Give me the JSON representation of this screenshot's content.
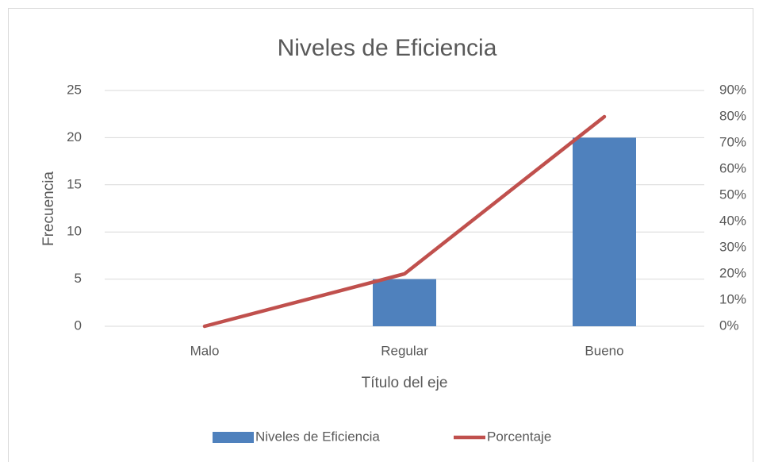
{
  "chart_data": {
    "type": "bar",
    "title": "Niveles de Eficiencia",
    "x_label": "Título del eje",
    "y_label": "Frecuencia",
    "categories": [
      "Malo",
      "Regular",
      "Bueno"
    ],
    "series": [
      {
        "name": "Niveles de Eficiencia",
        "type": "bar",
        "color": "#4f81bd",
        "values": [
          0,
          5,
          20
        ]
      },
      {
        "name": "Porcentaje",
        "type": "line",
        "axis": "y2",
        "color": "#c0504d",
        "values": [
          0,
          20,
          80
        ]
      }
    ],
    "ylim": [
      0,
      25
    ],
    "yticks": [
      0,
      5,
      10,
      15,
      20,
      25
    ],
    "y2lim": [
      0,
      90
    ],
    "y2ticks": [
      {
        "value": 0,
        "label": "0%"
      },
      {
        "value": 10,
        "label": "10%"
      },
      {
        "value": 20,
        "label": "20%"
      },
      {
        "value": 30,
        "label": "30%"
      },
      {
        "value": 40,
        "label": "40%"
      },
      {
        "value": 50,
        "label": "50%"
      },
      {
        "value": 60,
        "label": "60%"
      },
      {
        "value": 70,
        "label": "70%"
      },
      {
        "value": 80,
        "label": "80%"
      },
      {
        "value": 90,
        "label": "90%"
      }
    ],
    "grid": true,
    "legend": "bottom"
  }
}
